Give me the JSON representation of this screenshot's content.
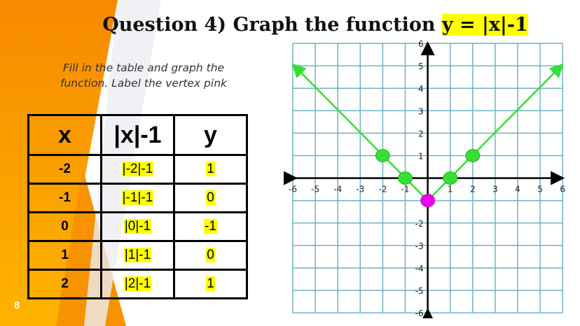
{
  "title": {
    "prefix": "Question 4) Graph the function ",
    "function": "y = |x|-1"
  },
  "instructions": "Fill in the table and graph the function.  Label the vertex pink",
  "table": {
    "headers": [
      "x",
      "|x|-1",
      "y"
    ],
    "rows": [
      [
        "-2",
        "|-2|-1",
        "1"
      ],
      [
        "-1",
        "|-1|-1",
        "0"
      ],
      [
        "0",
        "|0|-1",
        "-1"
      ],
      [
        "1",
        "|1|-1",
        "0"
      ],
      [
        "2",
        "|2|-1",
        "1"
      ]
    ]
  },
  "slide_number": "8",
  "colors": {
    "highlight": "#ffff00",
    "line": "#33e033",
    "vertex": "#ee00ee",
    "grid": "#6fb3c4",
    "orange": "#f7a200"
  },
  "chart_data": {
    "type": "line",
    "function": "y = |x|-1",
    "xlim": [
      -6,
      6
    ],
    "ylim": [
      -6,
      6
    ],
    "grid": true,
    "x_ticks": [
      "-6",
      "-5",
      "-4",
      "-3",
      "-2",
      "-1",
      "1",
      "2",
      "3",
      "4",
      "5",
      "6"
    ],
    "y_ticks": [
      "6",
      "5",
      "4",
      "3",
      "2",
      "1",
      "-2",
      "-3",
      "-4",
      "-5",
      "-6"
    ],
    "points": [
      {
        "x": -2,
        "y": 1,
        "color": "green"
      },
      {
        "x": -1,
        "y": 0,
        "color": "green"
      },
      {
        "x": 0,
        "y": -1,
        "color": "pink",
        "label": "vertex"
      },
      {
        "x": 1,
        "y": 0,
        "color": "green"
      },
      {
        "x": 2,
        "y": 1,
        "color": "green"
      }
    ],
    "line_endpoints": [
      {
        "x": -6,
        "y": 5
      },
      {
        "x": 6,
        "y": 5
      }
    ]
  }
}
